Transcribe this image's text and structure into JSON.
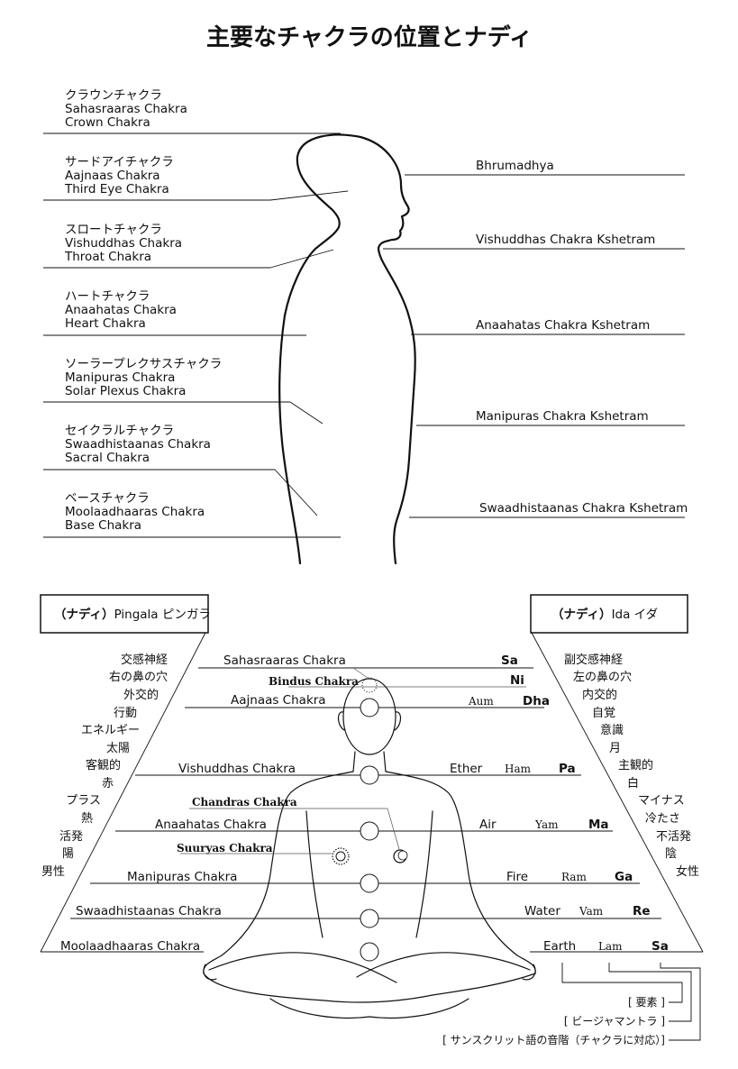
{
  "title": "主要なチャクラの位置とナディ",
  "top_chakras": [
    {
      "ja": "クラウンチャクラ",
      "sanskrit": "Sahasraaras Chakra",
      "en": "Crown Chakra"
    },
    {
      "ja": "サードアイチャクラ",
      "sanskrit": "Aajnaas Chakra",
      "en": "Third Eye Chakra"
    },
    {
      "ja": "スロートチャクラ",
      "sanskrit": "Vishuddhas Chakra",
      "en": "Throat Chakra"
    },
    {
      "ja": "ハートチャクラ",
      "sanskrit": "Anaahatas Chakra",
      "en": "Heart Chakra"
    },
    {
      "ja": "ソーラープレクサスチャクラ",
      "sanskrit": "Manipuras Chakra",
      "en": "Solar Plexus Chakra"
    },
    {
      "ja": "セイクラルチャクラ",
      "sanskrit": "Swaadhistaanas Chakra",
      "en": "Sacral Chakra"
    },
    {
      "ja": "ベースチャクラ",
      "sanskrit": "Moolaadhaaras Chakra",
      "en": "Base Chakra"
    }
  ],
  "kshetrams": [
    "Bhrumadhya",
    "Vishuddhas Chakra Kshetram",
    "Anaahatas Chakra Kshetram",
    "Manipuras Chakra Kshetram",
    "Swaadhistaanas Chakra Kshetram"
  ],
  "nadi_left": {
    "prefix": "（ナディ）",
    "name": "Pingala ピンガラ"
  },
  "nadi_right": {
    "prefix": "（ナディ）",
    "name": "Ida イダ"
  },
  "pingala_traits": [
    "交感神経",
    "右の鼻の穴",
    "外交的",
    "行動",
    "エネルギー",
    "太陽",
    "客観的",
    "赤",
    "プラス",
    "熱",
    "活発",
    "陽",
    "男性"
  ],
  "ida_traits": [
    "副交感神経",
    "左の鼻の穴",
    "内交的",
    "自覚",
    "意識",
    "月",
    "主観的",
    "白",
    "マイナス",
    "冷たさ",
    "不活発",
    "陰",
    "女性"
  ],
  "levels": [
    {
      "name": "Sahasraaras Chakra",
      "element": "",
      "bija": "",
      "note": "Sa"
    },
    {
      "name": "Aajnaas Chakra",
      "element": "",
      "bija": "Aum",
      "note": "Dha"
    },
    {
      "name": "Vishuddhas Chakra",
      "element": "Ether",
      "bija": "Ham",
      "note": "Pa"
    },
    {
      "name": "Anaahatas Chakra",
      "element": "Air",
      "bija": "Yam",
      "note": "Ma"
    },
    {
      "name": "Manipuras Chakra",
      "element": "Fire",
      "bija": "Ram",
      "note": "Ga"
    },
    {
      "name": "Swaadhistaanas Chakra",
      "element": "Water",
      "bija": "Vam",
      "note": "Re"
    },
    {
      "name": "Moolaadhaaras Chakra",
      "element": "Earth",
      "bija": "Lam",
      "note": "Sa"
    }
  ],
  "bindus": {
    "name": "Bindus Chakra",
    "note": "Ni"
  },
  "chandras": "Chandras Chakra",
  "suuryas": "Suuryas Chakra",
  "legend": [
    "[ 要素 ]",
    "[ ビージャマントラ ]",
    "[ サンスクリット語の音階（チャクラに対応）]"
  ]
}
